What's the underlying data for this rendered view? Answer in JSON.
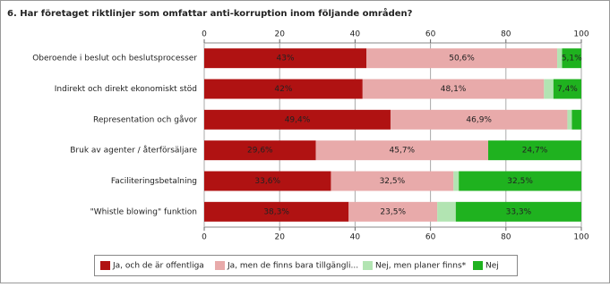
{
  "chart_data": {
    "type": "stacked-bar-horizontal",
    "title": "6. Har företaget riktlinjer som omfattar anti-korruption inom följande områden?",
    "categories": [
      "Oberoende i beslut och beslutsprocesser",
      "Indirekt och direkt ekonomiskt stöd",
      "Representation och gåvor",
      "Bruk av agenter / återförsäljare",
      "Faciliteringsbetalning",
      "\"Whistle blowing\" funktion"
    ],
    "series": [
      {
        "name": "Ja, och de är offentliga",
        "color": "#b01212",
        "values": [
          43,
          42,
          49.4,
          29.6,
          33.6,
          38.3
        ],
        "value_labels": [
          "43%",
          "42%",
          "49,4%",
          "29,6%",
          "33,6%",
          "38,3%"
        ]
      },
      {
        "name": "Ja, men de finns bara tillgängli...",
        "color": "#e8aaaa",
        "values": [
          50.6,
          48.1,
          46.9,
          45.7,
          32.5,
          23.5
        ],
        "value_labels": [
          "50,6%",
          "48,1%",
          "46,9%",
          "45,7%",
          "32,5%",
          "23,5%"
        ]
      },
      {
        "name": "Nej, men planer finns*",
        "color": "#b2e4b2",
        "values": [
          1.3,
          2.5,
          1.2,
          0,
          1.4,
          4.9
        ],
        "value_labels": [
          null,
          null,
          null,
          null,
          null,
          null
        ]
      },
      {
        "name": "Nej",
        "color": "#1fb21f",
        "values": [
          5.1,
          7.4,
          2.5,
          24.7,
          32.5,
          33.3
        ],
        "value_labels": [
          "5,1%",
          "7,4%",
          null,
          "24,7%",
          "32,5%",
          "33,3%"
        ]
      }
    ],
    "xlim": [
      0,
      100
    ],
    "xticks": [
      0,
      20,
      40,
      60,
      80,
      100
    ],
    "grid": true
  }
}
